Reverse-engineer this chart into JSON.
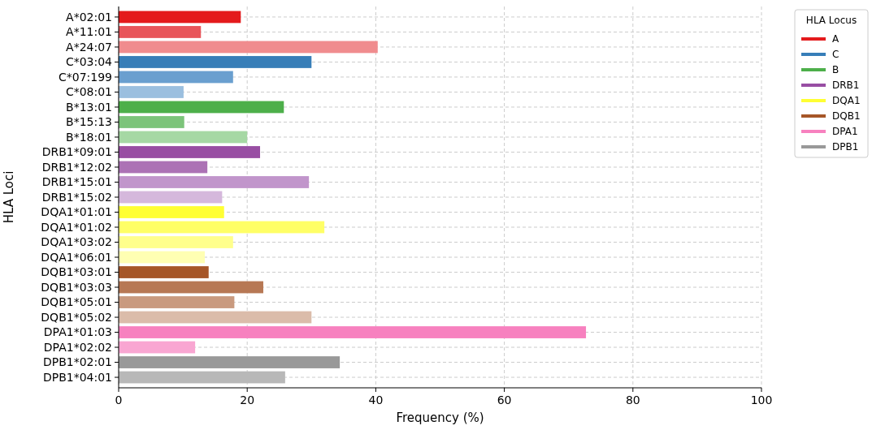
{
  "chart_data": {
    "type": "bar",
    "orientation": "horizontal",
    "xlabel": "Frequency (%)",
    "ylabel": "HLA Loci",
    "legend_title": "HLA Locus",
    "legend": "top right",
    "grid": true,
    "xlim": [
      0,
      100
    ],
    "xticks": [
      0,
      20,
      40,
      60,
      80,
      100
    ],
    "categories": [
      "A*02:01",
      "A*11:01",
      "A*24:07",
      "C*03:04",
      "C*07:199",
      "C*08:01",
      "B*13:01",
      "B*15:13",
      "B*18:01",
      "DRB1*09:01",
      "DRB1*12:02",
      "DRB1*15:01",
      "DRB1*15:02",
      "DQA1*01:01",
      "DQA1*01:02",
      "DQA1*03:02",
      "DQA1*06:01",
      "DQB1*03:01",
      "DQB1*03:03",
      "DQB1*05:01",
      "DQB1*05:02",
      "DPA1*01:03",
      "DPA1*02:02",
      "DPB1*02:01",
      "DPB1*04:01"
    ],
    "series": [
      {
        "name": "A",
        "color": "#e41a1c",
        "colors": [
          "#e41a1c",
          "#e8555a",
          "#f08c8e",
          null,
          null,
          null,
          null,
          null,
          null,
          null,
          null,
          null,
          null,
          null,
          null,
          null,
          null,
          null,
          null,
          null,
          null,
          null,
          null,
          null,
          null
        ],
        "values": [
          19.0,
          12.8,
          40.3,
          null,
          null,
          null,
          null,
          null,
          null,
          null,
          null,
          null,
          null,
          null,
          null,
          null,
          null,
          null,
          null,
          null,
          null,
          null,
          null,
          null,
          null
        ]
      },
      {
        "name": "C",
        "color": "#377eb8",
        "colors": [
          null,
          null,
          null,
          "#377eb8",
          "#6a9fcf",
          "#9bbfdf",
          null,
          null,
          null,
          null,
          null,
          null,
          null,
          null,
          null,
          null,
          null,
          null,
          null,
          null,
          null,
          null,
          null,
          null,
          null
        ],
        "values": [
          null,
          null,
          null,
          30.0,
          17.8,
          10.1,
          null,
          null,
          null,
          null,
          null,
          null,
          null,
          null,
          null,
          null,
          null,
          null,
          null,
          null,
          null,
          null,
          null,
          null,
          null
        ]
      },
      {
        "name": "B",
        "color": "#4daf4a",
        "colors": [
          null,
          null,
          null,
          null,
          null,
          null,
          "#4daf4a",
          "#7cc47a",
          "#a6d8a4",
          null,
          null,
          null,
          null,
          null,
          null,
          null,
          null,
          null,
          null,
          null,
          null,
          null,
          null,
          null,
          null
        ],
        "values": [
          null,
          null,
          null,
          null,
          null,
          null,
          25.7,
          10.2,
          20.0,
          null,
          null,
          null,
          null,
          null,
          null,
          null,
          null,
          null,
          null,
          null,
          null,
          null,
          null,
          null,
          null
        ]
      },
      {
        "name": "DRB1",
        "color": "#984ea3",
        "colors": [
          null,
          null,
          null,
          null,
          null,
          null,
          null,
          null,
          null,
          "#984ea3",
          "#ac72b5",
          "#c195cb",
          "#d5b8dc",
          null,
          null,
          null,
          null,
          null,
          null,
          null,
          null,
          null,
          null,
          null,
          null
        ],
        "values": [
          null,
          null,
          null,
          null,
          null,
          null,
          null,
          null,
          null,
          22.0,
          13.8,
          29.6,
          16.1,
          null,
          null,
          null,
          null,
          null,
          null,
          null,
          null,
          null,
          null,
          null,
          null
        ]
      },
      {
        "name": "DQA1",
        "color": "#ffff33",
        "colors": [
          null,
          null,
          null,
          null,
          null,
          null,
          null,
          null,
          null,
          null,
          null,
          null,
          null,
          "#ffff33",
          "#ffff66",
          "#ffff8c",
          "#ffffb3",
          null,
          null,
          null,
          null,
          null,
          null,
          null,
          null
        ],
        "values": [
          null,
          null,
          null,
          null,
          null,
          null,
          null,
          null,
          null,
          null,
          null,
          null,
          null,
          16.4,
          32.0,
          17.8,
          13.4,
          null,
          null,
          null,
          null,
          null,
          null,
          null,
          null
        ]
      },
      {
        "name": "DQB1",
        "color": "#a65628",
        "colors": [
          null,
          null,
          null,
          null,
          null,
          null,
          null,
          null,
          null,
          null,
          null,
          null,
          null,
          null,
          null,
          null,
          null,
          "#a65628",
          "#b77854",
          "#c99a7f",
          "#dbbcaa",
          null,
          null,
          null,
          null
        ],
        "values": [
          null,
          null,
          null,
          null,
          null,
          null,
          null,
          null,
          null,
          null,
          null,
          null,
          null,
          null,
          null,
          null,
          null,
          14.0,
          22.5,
          18.0,
          30.0,
          null,
          null,
          null,
          null
        ]
      },
      {
        "name": "DPA1",
        "color": "#f781bf",
        "colors": [
          null,
          null,
          null,
          null,
          null,
          null,
          null,
          null,
          null,
          null,
          null,
          null,
          null,
          null,
          null,
          null,
          null,
          null,
          null,
          null,
          null,
          "#f781bf",
          "#f9a6d2",
          null,
          null
        ],
        "values": [
          null,
          null,
          null,
          null,
          null,
          null,
          null,
          null,
          null,
          null,
          null,
          null,
          null,
          null,
          null,
          null,
          null,
          null,
          null,
          null,
          null,
          72.7,
          11.9,
          null,
          null
        ]
      },
      {
        "name": "DPB1",
        "color": "#999999",
        "colors": [
          null,
          null,
          null,
          null,
          null,
          null,
          null,
          null,
          null,
          null,
          null,
          null,
          null,
          null,
          null,
          null,
          null,
          null,
          null,
          null,
          null,
          null,
          null,
          "#999999",
          "#b8b8b8"
        ],
        "values": [
          null,
          null,
          null,
          null,
          null,
          null,
          null,
          null,
          null,
          null,
          null,
          null,
          null,
          null,
          null,
          null,
          null,
          null,
          null,
          null,
          null,
          null,
          null,
          34.4,
          25.9
        ]
      }
    ]
  }
}
